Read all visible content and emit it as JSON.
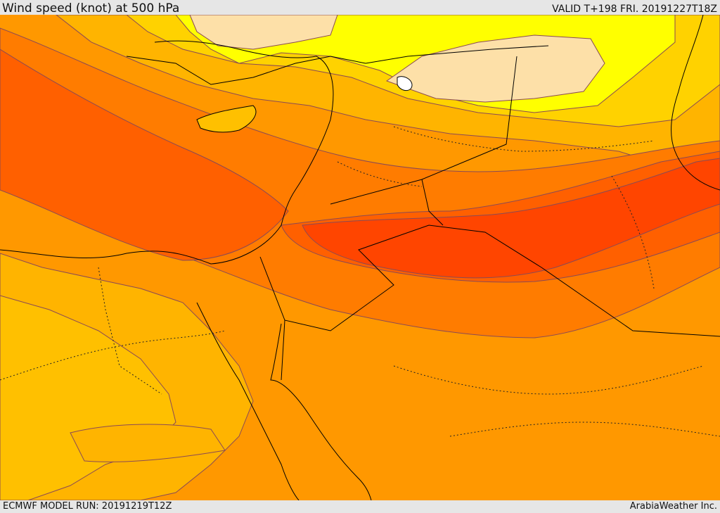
{
  "header": {
    "title": "Wind speed (knot) at 500 hPa",
    "valid_time": "VALID T+198 FRI. 20191227T18Z"
  },
  "footer": {
    "model_run": "ECMWF MODEL RUN: 20191219T12Z",
    "credit": "ArabiaWeather Inc."
  },
  "map": {
    "variable": "wind speed",
    "units": "knot",
    "pressure_level": "500 hPa",
    "band_colors": {
      "lowest": "#fde0a8",
      "low": "#ffff00",
      "low_mid": "#ffd200",
      "mid": "#ffb400",
      "mid_high": "#ff9a00",
      "high": "#ff7c00",
      "higher": "#ff6000",
      "highest": "#ff4500"
    }
  }
}
